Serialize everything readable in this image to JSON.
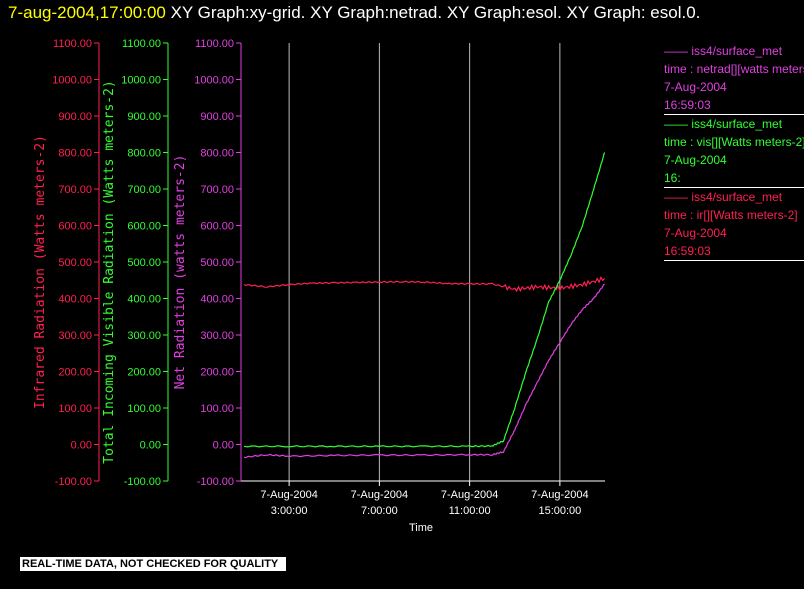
{
  "header": {
    "date_stamp": "7-aug-2004,17:00:00",
    "graph_list": " XY Graph:xy-grid.  XY Graph:netrad.  XY Graph:esol.  XY Graph: esol.0."
  },
  "legend": [
    {
      "source": "iss4/surface_met",
      "variable": "time : netrad[][watts meters-2]",
      "date": "7-Aug-2004",
      "time": "16:59:03",
      "color": "#e040e0"
    },
    {
      "source": "iss4/surface_met",
      "variable": "time : vis[][Watts meters-2]",
      "date": "7-Aug-2004",
      "time": "16:",
      "color": "#30ff30"
    },
    {
      "source": "iss4/surface_met",
      "variable": "time : ir[][Watts meters-2]",
      "date": "7-Aug-2004",
      "time": "16:59:03",
      "color": "#ff2050"
    }
  ],
  "banner": "REAL-TIME DATA, NOT CHECKED FOR QUALITY",
  "chart_data": {
    "type": "line",
    "xlabel": "Time",
    "x_domain": [
      "7-Aug-2004 0:52:00",
      "7-Aug-2004 17:00:00"
    ],
    "x_ticks": [
      {
        "x": "7-Aug-2004 3:00:00",
        "date": "7-Aug-2004",
        "time": "3:00:00"
      },
      {
        "x": "7-Aug-2004 7:00:00",
        "date": "7-Aug-2004",
        "time": "7:00:00"
      },
      {
        "x": "7-Aug-2004 11:00:00",
        "date": "7-Aug-2004",
        "time": "11:00:00"
      },
      {
        "x": "7-Aug-2004 15:00:00",
        "date": "7-Aug-2004",
        "time": "15:00:00"
      }
    ],
    "grid": "vertical lines at x ticks",
    "axes": [
      {
        "id": "ir",
        "label": "Infrared Radiation (Watts meters-2)",
        "color": "#ff2050",
        "ylim": [
          -100,
          1100
        ],
        "ticks": [
          "1100.00",
          "1000.00",
          "900.00",
          "800.00",
          "700.00",
          "600.00",
          "500.00",
          "400.00",
          "300.00",
          "200.00",
          "100.00",
          "0.00",
          "-100.00"
        ]
      },
      {
        "id": "vis",
        "label": "Total Incoming Visible Radiation (Watts meters-2)",
        "color": "#30ff30",
        "ylim": [
          -100,
          1100
        ],
        "ticks": [
          "1100.00",
          "1000.00",
          "900.00",
          "800.00",
          "700.00",
          "600.00",
          "500.00",
          "400.00",
          "300.00",
          "200.00",
          "100.00",
          "0.00",
          "-100.00"
        ]
      },
      {
        "id": "net",
        "label": "Net Radiation (watts meters-2)",
        "color": "#e040e0",
        "ylim": [
          -100,
          1100
        ],
        "ticks": [
          "1100.00",
          "1000.00",
          "900.00",
          "800.00",
          "700.00",
          "600.00",
          "500.00",
          "400.00",
          "300.00",
          "200.00",
          "100.00",
          "0.00",
          "-100.00"
        ]
      }
    ],
    "series": [
      {
        "axis": "ir",
        "color": "#ff2050",
        "x": [
          "7-Aug-2004 1:00:00",
          "7-Aug-2004 2:00:00",
          "7-Aug-2004 3:00:00",
          "7-Aug-2004 4:00:00",
          "7-Aug-2004 5:00:00",
          "7-Aug-2004 6:00:00",
          "7-Aug-2004 7:00:00",
          "7-Aug-2004 8:00:00",
          "7-Aug-2004 9:00:00",
          "7-Aug-2004 10:00:00",
          "7-Aug-2004 11:00:00",
          "7-Aug-2004 12:00:00",
          "7-Aug-2004 13:00:00",
          "7-Aug-2004 14:00:00",
          "7-Aug-2004 15:00:00",
          "7-Aug-2004 16:00:00",
          "7-Aug-2004 16:59:00"
        ],
        "y": [
          438,
          432,
          438,
          442,
          443,
          444,
          445,
          446,
          445,
          441,
          440,
          440,
          425,
          432,
          428,
          438,
          455
        ]
      },
      {
        "axis": "vis",
        "color": "#30ff30",
        "x": [
          "7-Aug-2004 1:00:00",
          "7-Aug-2004 3:00:00",
          "7-Aug-2004 5:00:00",
          "7-Aug-2004 7:00:00",
          "7-Aug-2004 9:00:00",
          "7-Aug-2004 11:00:00",
          "7-Aug-2004 12:00:00",
          "7-Aug-2004 12:30:00",
          "7-Aug-2004 13:00:00",
          "7-Aug-2004 13:30:00",
          "7-Aug-2004 14:00:00",
          "7-Aug-2004 14:30:00",
          "7-Aug-2004 15:00:00",
          "7-Aug-2004 15:30:00",
          "7-Aug-2004 16:00:00",
          "7-Aug-2004 16:30:00",
          "7-Aug-2004 16:59:00"
        ],
        "y": [
          -5,
          -5,
          -5,
          -5,
          -5,
          -5,
          -4,
          10,
          100,
          200,
          290,
          390,
          450,
          520,
          600,
          700,
          800
        ]
      },
      {
        "axis": "net",
        "color": "#e040e0",
        "x": [
          "7-Aug-2004 1:00:00",
          "7-Aug-2004 2:00:00",
          "7-Aug-2004 3:00:00",
          "7-Aug-2004 5:00:00",
          "7-Aug-2004 7:00:00",
          "7-Aug-2004 9:00:00",
          "7-Aug-2004 11:00:00",
          "7-Aug-2004 12:00:00",
          "7-Aug-2004 12:30:00",
          "7-Aug-2004 13:00:00",
          "7-Aug-2004 13:30:00",
          "7-Aug-2004 14:00:00",
          "7-Aug-2004 14:30:00",
          "7-Aug-2004 15:00:00",
          "7-Aug-2004 15:30:00",
          "7-Aug-2004 16:00:00",
          "7-Aug-2004 16:30:00",
          "7-Aug-2004 16:59:00"
        ],
        "y": [
          -35,
          -28,
          -32,
          -30,
          -29,
          -29,
          -28,
          -28,
          -20,
          40,
          110,
          170,
          230,
          280,
          330,
          370,
          400,
          440
        ]
      }
    ]
  }
}
